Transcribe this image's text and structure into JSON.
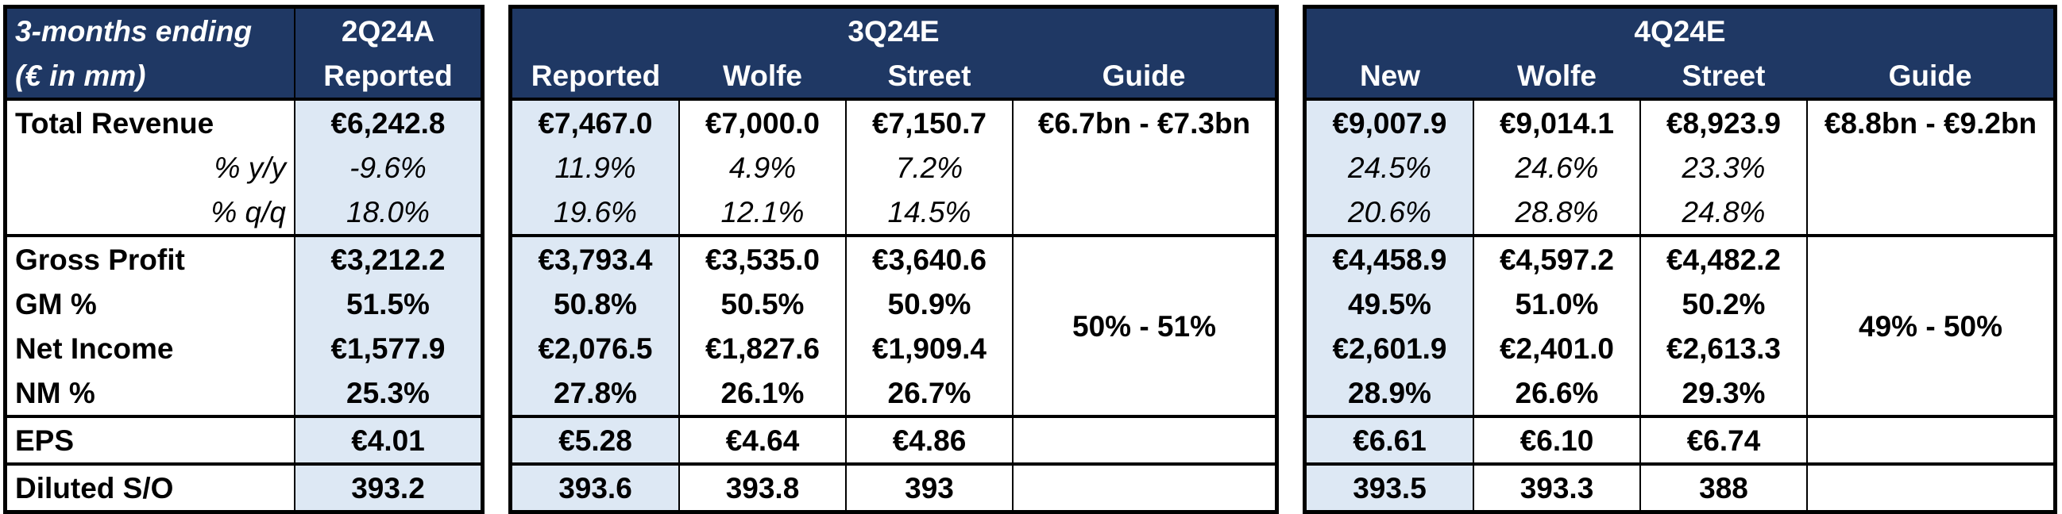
{
  "left": {
    "title_line1": "3-months ending",
    "title_line2": "(€ in mm)",
    "period_line1": "2Q24A",
    "period_line2": "Reported",
    "rows": [
      {
        "label": "Total Revenue",
        "value": "€6,242.8"
      },
      {
        "label": "% y/y",
        "value": "-9.6%"
      },
      {
        "label": "% q/q",
        "value": "18.0%"
      },
      {
        "label": "Gross Profit",
        "value": "€3,212.2"
      },
      {
        "label": "GM %",
        "value": "51.5%"
      },
      {
        "label": "Net Income",
        "value": "€1,577.9"
      },
      {
        "label": "NM %",
        "value": "25.3%"
      },
      {
        "label": "EPS",
        "value": "€4.01"
      },
      {
        "label": "Diluted S/O",
        "value": "393.2"
      }
    ]
  },
  "q3": {
    "period": "3Q24E",
    "columns": [
      "Reported",
      "Wolfe",
      "Street",
      "Guide"
    ],
    "rows": [
      [
        "€7,467.0",
        "€7,000.0",
        "€7,150.7"
      ],
      [
        "11.9%",
        "4.9%",
        "7.2%"
      ],
      [
        "19.6%",
        "12.1%",
        "14.5%"
      ],
      [
        "€3,793.4",
        "€3,535.0",
        "€3,640.6"
      ],
      [
        "50.8%",
        "50.5%",
        "50.9%"
      ],
      [
        "€2,076.5",
        "€1,827.6",
        "€1,909.4"
      ],
      [
        "27.8%",
        "26.1%",
        "26.7%"
      ],
      [
        "€5.28",
        "€4.64",
        "€4.86"
      ],
      [
        "393.6",
        "393.8",
        "393"
      ]
    ],
    "guide_revenue": "€6.7bn - €7.3bn",
    "guide_margin": "50% - 51%"
  },
  "q4": {
    "period": "4Q24E",
    "columns": [
      "New",
      "Wolfe",
      "Street",
      "Guide"
    ],
    "rows": [
      [
        "€9,007.9",
        "€9,014.1",
        "€8,923.9"
      ],
      [
        "24.5%",
        "24.6%",
        "23.3%"
      ],
      [
        "20.6%",
        "28.8%",
        "24.8%"
      ],
      [
        "€4,458.9",
        "€4,597.2",
        "€4,482.2"
      ],
      [
        "49.5%",
        "51.0%",
        "50.2%"
      ],
      [
        "€2,601.9",
        "€2,401.0",
        "€2,613.3"
      ],
      [
        "28.9%",
        "26.6%",
        "29.3%"
      ],
      [
        "€6.61",
        "€6.10",
        "€6.74"
      ],
      [
        "393.5",
        "393.3",
        "388"
      ]
    ],
    "guide_revenue": "€8.8bn - €9.2bn",
    "guide_margin": "49% - 50%"
  },
  "colors": {
    "header_bg": "#1f3864",
    "highlight_bg": "#dde8f4"
  }
}
